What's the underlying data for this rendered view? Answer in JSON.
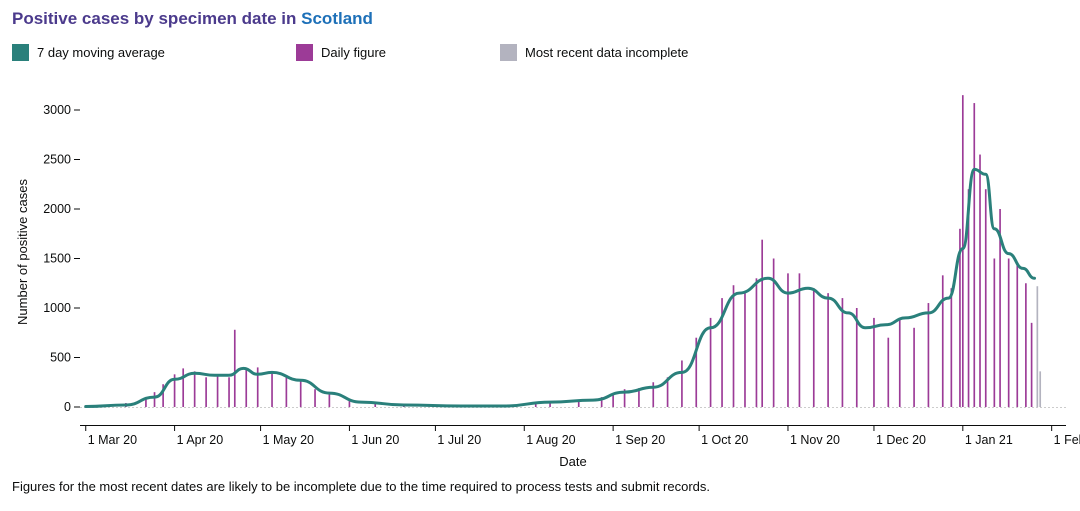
{
  "title": {
    "prefix": "Positive cases by specimen date in ",
    "place": "Scotland"
  },
  "legend": [
    {
      "label": "7 day moving average",
      "color": "#2a807b"
    },
    {
      "label": "Daily figure",
      "color": "#9c3b97"
    },
    {
      "label": "Most recent data incomplete",
      "color": "#b3b3bf"
    }
  ],
  "footnote": "Figures for the most recent dates are likely to be incomplete due to the time required to process tests and submit records.",
  "chart_data": {
    "type": "bar",
    "xlabel": "Date",
    "ylabel": "Number of positive cases",
    "ylim": [
      0,
      3300
    ],
    "yticks": [
      0,
      500,
      1000,
      1500,
      2000,
      2500,
      3000
    ],
    "xticks": [
      "1 Mar 20",
      "1 Apr 20",
      "1 May 20",
      "1 Jun 20",
      "1 Jul 20",
      "1 Aug 20",
      "1 Sep 20",
      "1 Oct 20",
      "1 Nov 20",
      "1 Dec 20",
      "1 Jan 21",
      "1 Feb 21"
    ],
    "xlim": [
      "2020-02-28",
      "2021-02-06"
    ],
    "colors": {
      "daily": "#9c3b97",
      "average": "#2a807b",
      "incomplete": "#b3b3bf"
    },
    "series": [
      {
        "name": "Daily figure",
        "points": [
          [
            "2020-03-01",
            5
          ],
          [
            "2020-03-08",
            15
          ],
          [
            "2020-03-15",
            40
          ],
          [
            "2020-03-22",
            90
          ],
          [
            "2020-03-25",
            150
          ],
          [
            "2020-03-28",
            230
          ],
          [
            "2020-04-01",
            330
          ],
          [
            "2020-04-04",
            390
          ],
          [
            "2020-04-08",
            360
          ],
          [
            "2020-04-12",
            300
          ],
          [
            "2020-04-16",
            320
          ],
          [
            "2020-04-20",
            300
          ],
          [
            "2020-04-22",
            780
          ],
          [
            "2020-04-26",
            380
          ],
          [
            "2020-04-30",
            400
          ],
          [
            "2020-05-05",
            360
          ],
          [
            "2020-05-10",
            310
          ],
          [
            "2020-05-15",
            260
          ],
          [
            "2020-05-20",
            180
          ],
          [
            "2020-05-25",
            130
          ],
          [
            "2020-06-01",
            60
          ],
          [
            "2020-06-10",
            35
          ],
          [
            "2020-06-20",
            20
          ],
          [
            "2020-07-01",
            10
          ],
          [
            "2020-07-15",
            10
          ],
          [
            "2020-07-25",
            12
          ],
          [
            "2020-08-05",
            40
          ],
          [
            "2020-08-10",
            60
          ],
          [
            "2020-08-20",
            55
          ],
          [
            "2020-08-28",
            100
          ],
          [
            "2020-09-01",
            120
          ],
          [
            "2020-09-05",
            180
          ],
          [
            "2020-09-10",
            190
          ],
          [
            "2020-09-15",
            250
          ],
          [
            "2020-09-20",
            300
          ],
          [
            "2020-09-25",
            470
          ],
          [
            "2020-09-30",
            700
          ],
          [
            "2020-10-05",
            900
          ],
          [
            "2020-10-09",
            1100
          ],
          [
            "2020-10-13",
            1230
          ],
          [
            "2020-10-17",
            1150
          ],
          [
            "2020-10-21",
            1300
          ],
          [
            "2020-10-23",
            1690
          ],
          [
            "2020-10-27",
            1500
          ],
          [
            "2020-11-01",
            1350
          ],
          [
            "2020-11-05",
            1350
          ],
          [
            "2020-11-10",
            1200
          ],
          [
            "2020-11-15",
            1150
          ],
          [
            "2020-11-20",
            1100
          ],
          [
            "2020-11-25",
            1000
          ],
          [
            "2020-12-01",
            900
          ],
          [
            "2020-12-06",
            700
          ],
          [
            "2020-12-10",
            900
          ],
          [
            "2020-12-15",
            800
          ],
          [
            "2020-12-20",
            1050
          ],
          [
            "2020-12-25",
            1330
          ],
          [
            "2020-12-28",
            1200
          ],
          [
            "2020-12-31",
            1800
          ],
          [
            "2021-01-01",
            3150
          ],
          [
            "2021-01-03",
            2200
          ],
          [
            "2021-01-05",
            3070
          ],
          [
            "2021-01-07",
            2550
          ],
          [
            "2021-01-09",
            2200
          ],
          [
            "2021-01-12",
            1500
          ],
          [
            "2021-01-14",
            2000
          ],
          [
            "2021-01-17",
            1500
          ],
          [
            "2021-01-20",
            1450
          ],
          [
            "2021-01-23",
            1250
          ],
          [
            "2021-01-25",
            850
          ]
        ]
      },
      {
        "name": "7 day moving average",
        "points": [
          [
            "2020-03-01",
            5
          ],
          [
            "2020-03-15",
            20
          ],
          [
            "2020-03-25",
            100
          ],
          [
            "2020-04-01",
            280
          ],
          [
            "2020-04-08",
            340
          ],
          [
            "2020-04-15",
            320
          ],
          [
            "2020-04-20",
            320
          ],
          [
            "2020-04-25",
            390
          ],
          [
            "2020-04-30",
            330
          ],
          [
            "2020-05-05",
            350
          ],
          [
            "2020-05-15",
            270
          ],
          [
            "2020-05-25",
            140
          ],
          [
            "2020-06-05",
            50
          ],
          [
            "2020-06-20",
            20
          ],
          [
            "2020-07-10",
            10
          ],
          [
            "2020-07-25",
            10
          ],
          [
            "2020-08-10",
            50
          ],
          [
            "2020-08-25",
            70
          ],
          [
            "2020-09-05",
            150
          ],
          [
            "2020-09-15",
            200
          ],
          [
            "2020-09-25",
            350
          ],
          [
            "2020-10-05",
            800
          ],
          [
            "2020-10-15",
            1150
          ],
          [
            "2020-10-25",
            1300
          ],
          [
            "2020-11-01",
            1150
          ],
          [
            "2020-11-08",
            1200
          ],
          [
            "2020-11-15",
            1100
          ],
          [
            "2020-11-22",
            950
          ],
          [
            "2020-11-28",
            800
          ],
          [
            "2020-12-05",
            830
          ],
          [
            "2020-12-12",
            900
          ],
          [
            "2020-12-20",
            950
          ],
          [
            "2020-12-27",
            1100
          ],
          [
            "2021-01-01",
            1600
          ],
          [
            "2021-01-05",
            2400
          ],
          [
            "2021-01-09",
            2350
          ],
          [
            "2021-01-12",
            1800
          ],
          [
            "2021-01-17",
            1550
          ],
          [
            "2021-01-22",
            1400
          ],
          [
            "2021-01-26",
            1300
          ]
        ]
      },
      {
        "name": "Most recent data incomplete",
        "points": [
          [
            "2021-01-27",
            1220
          ],
          [
            "2021-01-28",
            360
          ]
        ]
      }
    ]
  }
}
